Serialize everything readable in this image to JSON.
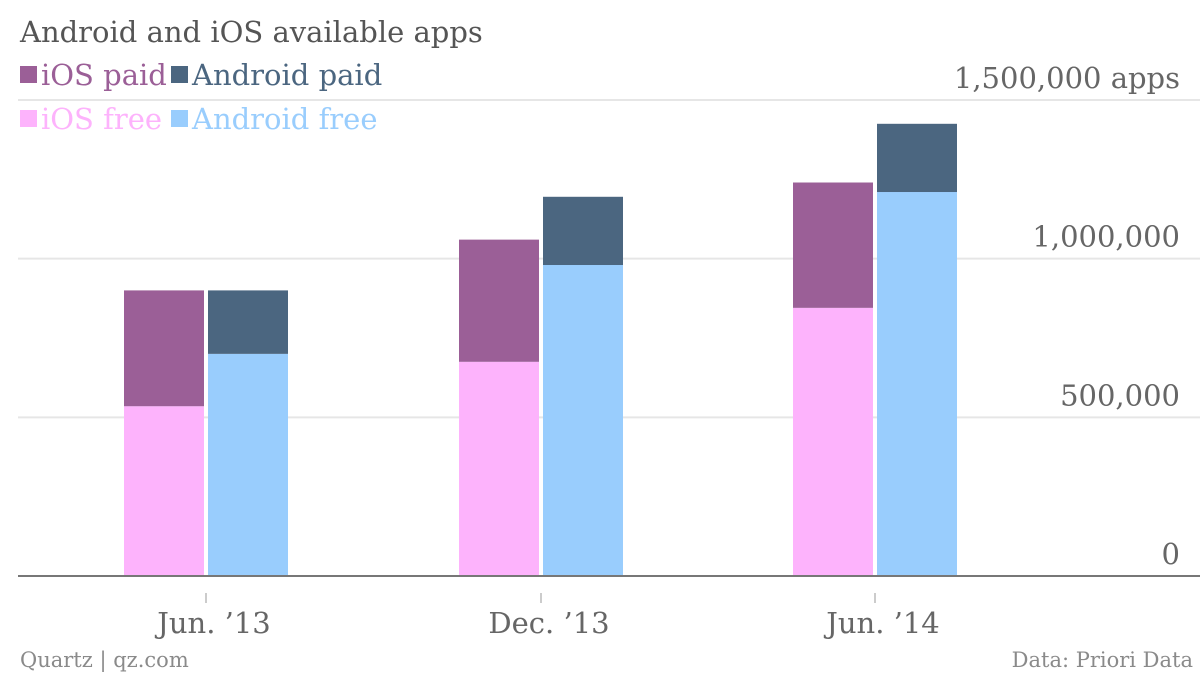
{
  "title": "Android and iOS available apps",
  "footer": {
    "credit": "Quartz | qz.com",
    "source": "Data: Priori Data"
  },
  "colors": {
    "ios_paid": "#9b5f97",
    "android_paid": "#4b6680",
    "ios_free": "#fdb3fc",
    "android_free": "#99cdfd",
    "grid": "#e6e6e6",
    "axis": "#777777"
  },
  "chart_data": {
    "type": "bar",
    "stacked": true,
    "grouped": true,
    "title": "Android and iOS available apps",
    "categories": [
      "Jun. ’13",
      "Dec. ’13",
      "Jun. ’14"
    ],
    "ylim": [
      0,
      1500000
    ],
    "ytick_values": [
      0,
      500000,
      1000000,
      1500000
    ],
    "ytick_labels": [
      "0",
      "500,000",
      "1,000,000",
      "1,500,000 apps"
    ],
    "grid": true,
    "legend": [
      {
        "name": "iOS paid",
        "color": "#9b5f97"
      },
      {
        "name": "Android paid",
        "color": "#4b6680"
      },
      {
        "name": "iOS free",
        "color": "#fdb3fc"
      },
      {
        "name": "Android free",
        "color": "#99cdfd"
      }
    ],
    "groups": [
      {
        "platform": "iOS",
        "series": [
          {
            "name": "iOS free",
            "color": "#fdb3fc",
            "values": [
              535000,
              675000,
              845000
            ]
          },
          {
            "name": "iOS paid",
            "color": "#9b5f97",
            "values": [
              365000,
              385000,
              395000
            ]
          }
        ]
      },
      {
        "platform": "Android",
        "series": [
          {
            "name": "Android free",
            "color": "#99cdfd",
            "values": [
              700000,
              980000,
              1210000
            ]
          },
          {
            "name": "Android paid",
            "color": "#4b6680",
            "values": [
              200000,
              215000,
              215000
            ]
          }
        ]
      }
    ]
  }
}
